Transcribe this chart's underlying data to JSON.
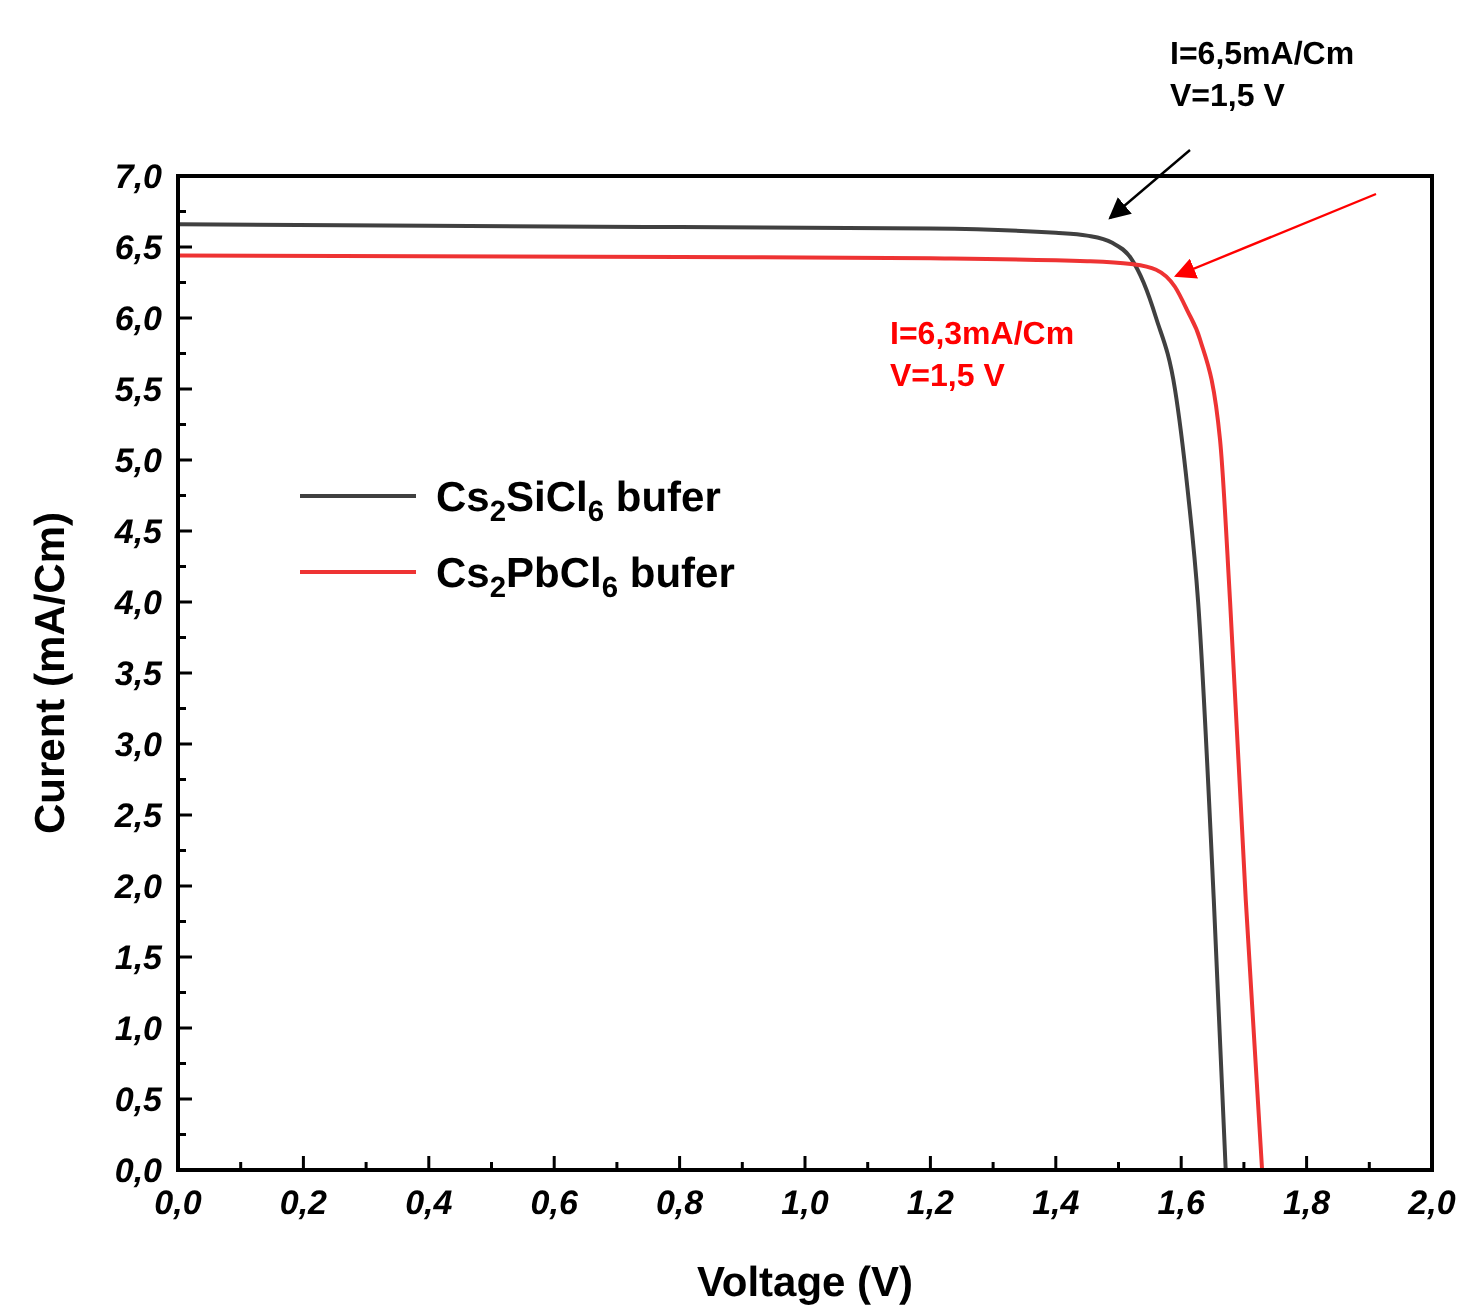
{
  "chart_data": {
    "type": "line",
    "xlabel": "Voltage (V)",
    "ylabel": "Curent (mA/Cm)",
    "xlim": [
      0,
      2
    ],
    "ylim": [
      0,
      7
    ],
    "xticks": [
      {
        "value": 0,
        "label": "0,0"
      },
      {
        "value": 0.1,
        "label": null
      },
      {
        "value": 0.2,
        "label": "0,2"
      },
      {
        "value": 0.3,
        "label": null
      },
      {
        "value": 0.4,
        "label": "0,4"
      },
      {
        "value": 0.5,
        "label": null
      },
      {
        "value": 0.6,
        "label": "0,6"
      },
      {
        "value": 0.7,
        "label": null
      },
      {
        "value": 0.8,
        "label": "0,8"
      },
      {
        "value": 0.9,
        "label": null
      },
      {
        "value": 1,
        "label": "1,0"
      },
      {
        "value": 1.1,
        "label": null
      },
      {
        "value": 1.2,
        "label": "1,2"
      },
      {
        "value": 1.3,
        "label": null
      },
      {
        "value": 1.4,
        "label": "1,4"
      },
      {
        "value": 1.5,
        "label": null
      },
      {
        "value": 1.6,
        "label": "1,6"
      },
      {
        "value": 1.7,
        "label": null
      },
      {
        "value": 1.8,
        "label": "1,8"
      },
      {
        "value": 1.9,
        "label": null
      },
      {
        "value": 2,
        "label": "2,0"
      }
    ],
    "yticks": [
      {
        "value": 0,
        "label": "0,0"
      },
      {
        "value": 0.25,
        "label": null
      },
      {
        "value": 0.5,
        "label": "0,5"
      },
      {
        "value": 0.75,
        "label": null
      },
      {
        "value": 1,
        "label": "1,0"
      },
      {
        "value": 1.25,
        "label": null
      },
      {
        "value": 1.5,
        "label": "1,5"
      },
      {
        "value": 1.75,
        "label": null
      },
      {
        "value": 2,
        "label": "2,0"
      },
      {
        "value": 2.25,
        "label": null
      },
      {
        "value": 2.5,
        "label": "2,5"
      },
      {
        "value": 2.75,
        "label": null
      },
      {
        "value": 3,
        "label": "3,0"
      },
      {
        "value": 3.25,
        "label": null
      },
      {
        "value": 3.5,
        "label": "3,5"
      },
      {
        "value": 3.75,
        "label": null
      },
      {
        "value": 4,
        "label": "4,0"
      },
      {
        "value": 4.25,
        "label": null
      },
      {
        "value": 4.5,
        "label": "4,5"
      },
      {
        "value": 4.75,
        "label": null
      },
      {
        "value": 5,
        "label": "5,0"
      },
      {
        "value": 5.25,
        "label": null
      },
      {
        "value": 5.5,
        "label": "5,5"
      },
      {
        "value": 5.75,
        "label": null
      },
      {
        "value": 6,
        "label": "6,0"
      },
      {
        "value": 6.25,
        "label": null
      },
      {
        "value": 6.5,
        "label": "6,5"
      },
      {
        "value": 6.75,
        "label": null
      },
      {
        "value": 7,
        "label": "7,0"
      }
    ],
    "grid": false,
    "legend": "left",
    "marker": "none",
    "line_style": "solid",
    "series": [
      {
        "name": "Cs$_{2}$SiCl$_{6}$ bufer",
        "color": "#404040",
        "x": [
          0,
          0.4,
          0.8,
          1.2,
          1.4,
          1.45,
          1.49,
          1.52,
          1.54,
          1.56,
          1.59,
          1.61,
          1.627,
          1.652,
          1.671
        ],
        "values": [
          6.66,
          6.65,
          6.64,
          6.63,
          6.6,
          6.58,
          6.53,
          6.42,
          6.25,
          6,
          5.5,
          4.8,
          4,
          1.9,
          0
        ]
      },
      {
        "name": "Cs$_{2}$PbCl$_{6}$ bufer",
        "color": "#ee3333",
        "x": [
          0,
          0.8,
          1.2,
          1.45,
          1.52,
          1.56,
          1.59,
          1.61,
          1.63,
          1.662,
          1.678,
          1.703,
          1.729
        ],
        "values": [
          6.44,
          6.43,
          6.42,
          6.4,
          6.38,
          6.34,
          6.22,
          6.05,
          5.85,
          5.14,
          4,
          1.9,
          0
        ]
      }
    ],
    "annotations": [
      "I=6,5mA/Cm\nV=1,5 V",
      "I=6,3mA/Cm\nV=1,5 V"
    ]
  }
}
